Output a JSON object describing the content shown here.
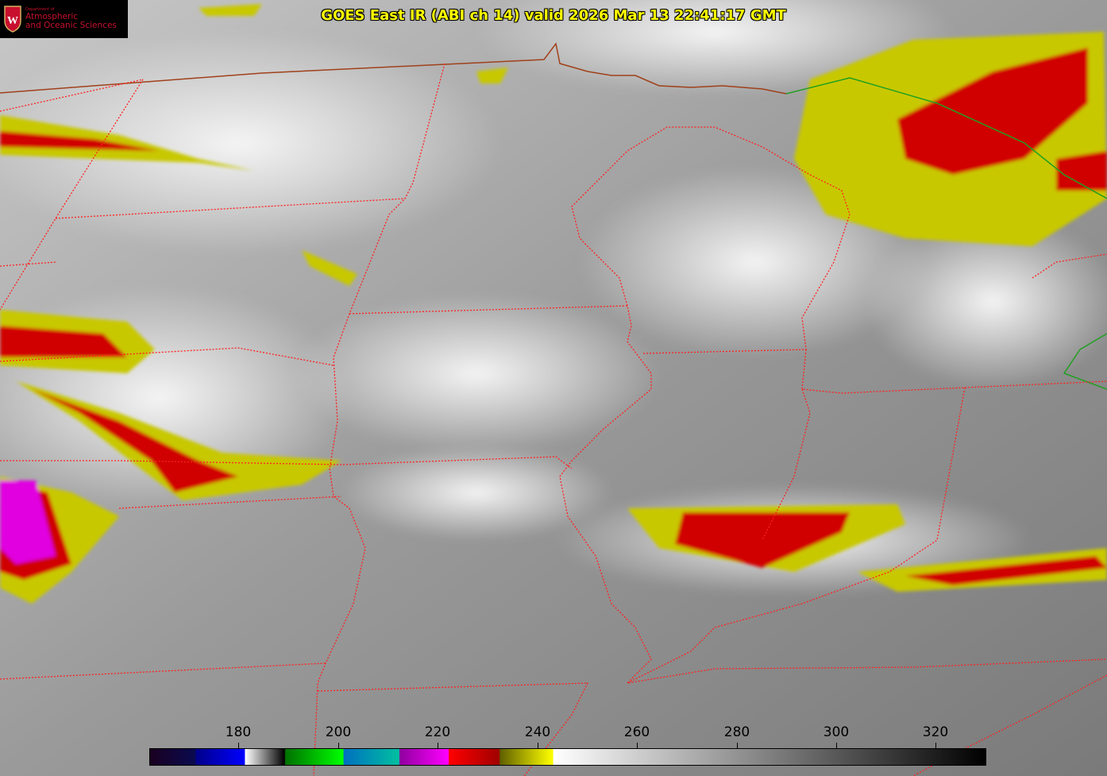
{
  "title": "GOES East IR (ABI ch 14) valid 2026 Mar 13 22:41:17 GMT",
  "logo": {
    "department": "Department of",
    "line1": "Atmospheric",
    "line2": "and Oceanic Sciences",
    "emblem": "W"
  },
  "colorbar": {
    "ticks": [
      "180",
      "200",
      "220",
      "240",
      "260",
      "280",
      "300",
      "320"
    ],
    "range": [
      162,
      330
    ],
    "colors": {
      "cold_purple": "#0a0a50",
      "blue": "#0000ff",
      "green": "#00ff00",
      "teal": "#00c0a0",
      "magenta": "#ff00ff",
      "red": "#ff0000",
      "yellow": "#ffff00",
      "warm": "#000000"
    }
  },
  "colors": {
    "state_borders": "#ff2020",
    "international_border": "#a0401a",
    "coastline_canada": "#20a020"
  }
}
